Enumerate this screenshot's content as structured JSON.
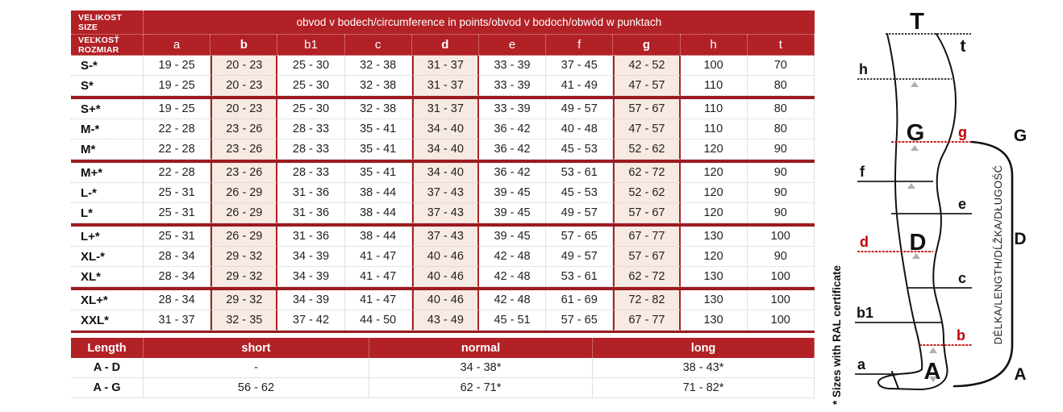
{
  "colors": {
    "header_red": "#b22126",
    "separator_red": "#9c1b20",
    "highlight_pink": "#f7eae2",
    "accent_red": "#c00000"
  },
  "table": {
    "corner1_line1": "VELIKOST",
    "corner1_line2": "SIZE",
    "corner2_line1": "VEĽKOSŤ",
    "corner2_line2": "ROZMIAR",
    "span_header": "obvod v bodech/circumference in points/obvod v bodoch/obwód w punktach",
    "columns": [
      "a",
      "b",
      "b1",
      "c",
      "d",
      "e",
      "f",
      "g",
      "h",
      "t"
    ],
    "highlight_columns": [
      "b",
      "d",
      "g"
    ],
    "rows": [
      {
        "size": "S-*",
        "values": [
          "19 - 25",
          "20 - 23",
          "25 - 30",
          "32 - 38",
          "31 - 37",
          "33 - 39",
          "37 - 45",
          "42 - 52",
          "100",
          "70"
        ]
      },
      {
        "size": "S*",
        "values": [
          "19 - 25",
          "20 - 23",
          "25 - 30",
          "32 - 38",
          "31 - 37",
          "33 - 39",
          "41 - 49",
          "47 - 57",
          "110",
          "80"
        ]
      },
      {
        "size": "S+*",
        "values": [
          "19 - 25",
          "20 - 23",
          "25 - 30",
          "32 - 38",
          "31 - 37",
          "33 - 39",
          "49 - 57",
          "57 - 67",
          "110",
          "80"
        ]
      },
      {
        "size": "M-*",
        "values": [
          "22 - 28",
          "23 - 26",
          "28 - 33",
          "35 - 41",
          "34 - 40",
          "36 - 42",
          "40 - 48",
          "47 - 57",
          "110",
          "80"
        ]
      },
      {
        "size": "M*",
        "values": [
          "22 - 28",
          "23 - 26",
          "28 - 33",
          "35 - 41",
          "34 - 40",
          "36 - 42",
          "45 - 53",
          "52 - 62",
          "120",
          "90"
        ]
      },
      {
        "size": "M+*",
        "values": [
          "22 - 28",
          "23 - 26",
          "28 - 33",
          "35 - 41",
          "34 - 40",
          "36 - 42",
          "53 - 61",
          "62 - 72",
          "120",
          "90"
        ]
      },
      {
        "size": "L-*",
        "values": [
          "25 - 31",
          "26 - 29",
          "31 - 36",
          "38 - 44",
          "37 - 43",
          "39 - 45",
          "45 - 53",
          "52 - 62",
          "120",
          "90"
        ]
      },
      {
        "size": "L*",
        "values": [
          "25 - 31",
          "26 - 29",
          "31 - 36",
          "38 - 44",
          "37 - 43",
          "39 - 45",
          "49 - 57",
          "57 - 67",
          "120",
          "90"
        ]
      },
      {
        "size": "L+*",
        "values": [
          "25 - 31",
          "26 - 29",
          "31 - 36",
          "38 - 44",
          "37 - 43",
          "39 - 45",
          "57 - 65",
          "67 - 77",
          "130",
          "100"
        ]
      },
      {
        "size": "XL-*",
        "values": [
          "28 - 34",
          "29 - 32",
          "34 - 39",
          "41 - 47",
          "40 - 46",
          "42 - 48",
          "49 - 57",
          "57 - 67",
          "120",
          "90"
        ]
      },
      {
        "size": "XL*",
        "values": [
          "28 - 34",
          "29 - 32",
          "34 - 39",
          "41 - 47",
          "40 - 46",
          "42 - 48",
          "53 - 61",
          "62 - 72",
          "130",
          "100"
        ]
      },
      {
        "size": "XL+*",
        "values": [
          "28 - 34",
          "29 - 32",
          "34 - 39",
          "41 - 47",
          "40 - 46",
          "42 - 48",
          "61 - 69",
          "72 - 82",
          "130",
          "100"
        ]
      },
      {
        "size": "XXL*",
        "values": [
          "31 - 37",
          "32 - 35",
          "37 - 42",
          "44 - 50",
          "43 - 49",
          "45 - 51",
          "57 - 65",
          "67 - 77",
          "130",
          "100"
        ]
      }
    ],
    "group_breaks_after": [
      "S*",
      "M*",
      "L*",
      "XL*"
    ]
  },
  "length_table": {
    "headers": [
      "Length",
      "short",
      "normal",
      "long"
    ],
    "rows": [
      {
        "label": "A - D",
        "values": [
          "-",
          "34 - 38*",
          "38 - 43*"
        ]
      },
      {
        "label": "A - G",
        "values": [
          "56 - 62",
          "62 - 71*",
          "71 - 82*"
        ]
      }
    ]
  },
  "footnote": "* Sizes with RAL certificate",
  "diagram": {
    "length_text": "DÉLKA/LENGTH/DĹŽKA/DŁUGOŚĆ",
    "labels": {
      "T": "T",
      "t": "t",
      "h": "h",
      "G_big": "G",
      "g": "g",
      "G_right": "G",
      "f": "f",
      "e": "e",
      "d": "d",
      "D_big": "D",
      "c": "c",
      "b1": "b1",
      "b": "b",
      "a": "a",
      "A_big": "A",
      "D_right": "D",
      "A_right": "A"
    }
  }
}
